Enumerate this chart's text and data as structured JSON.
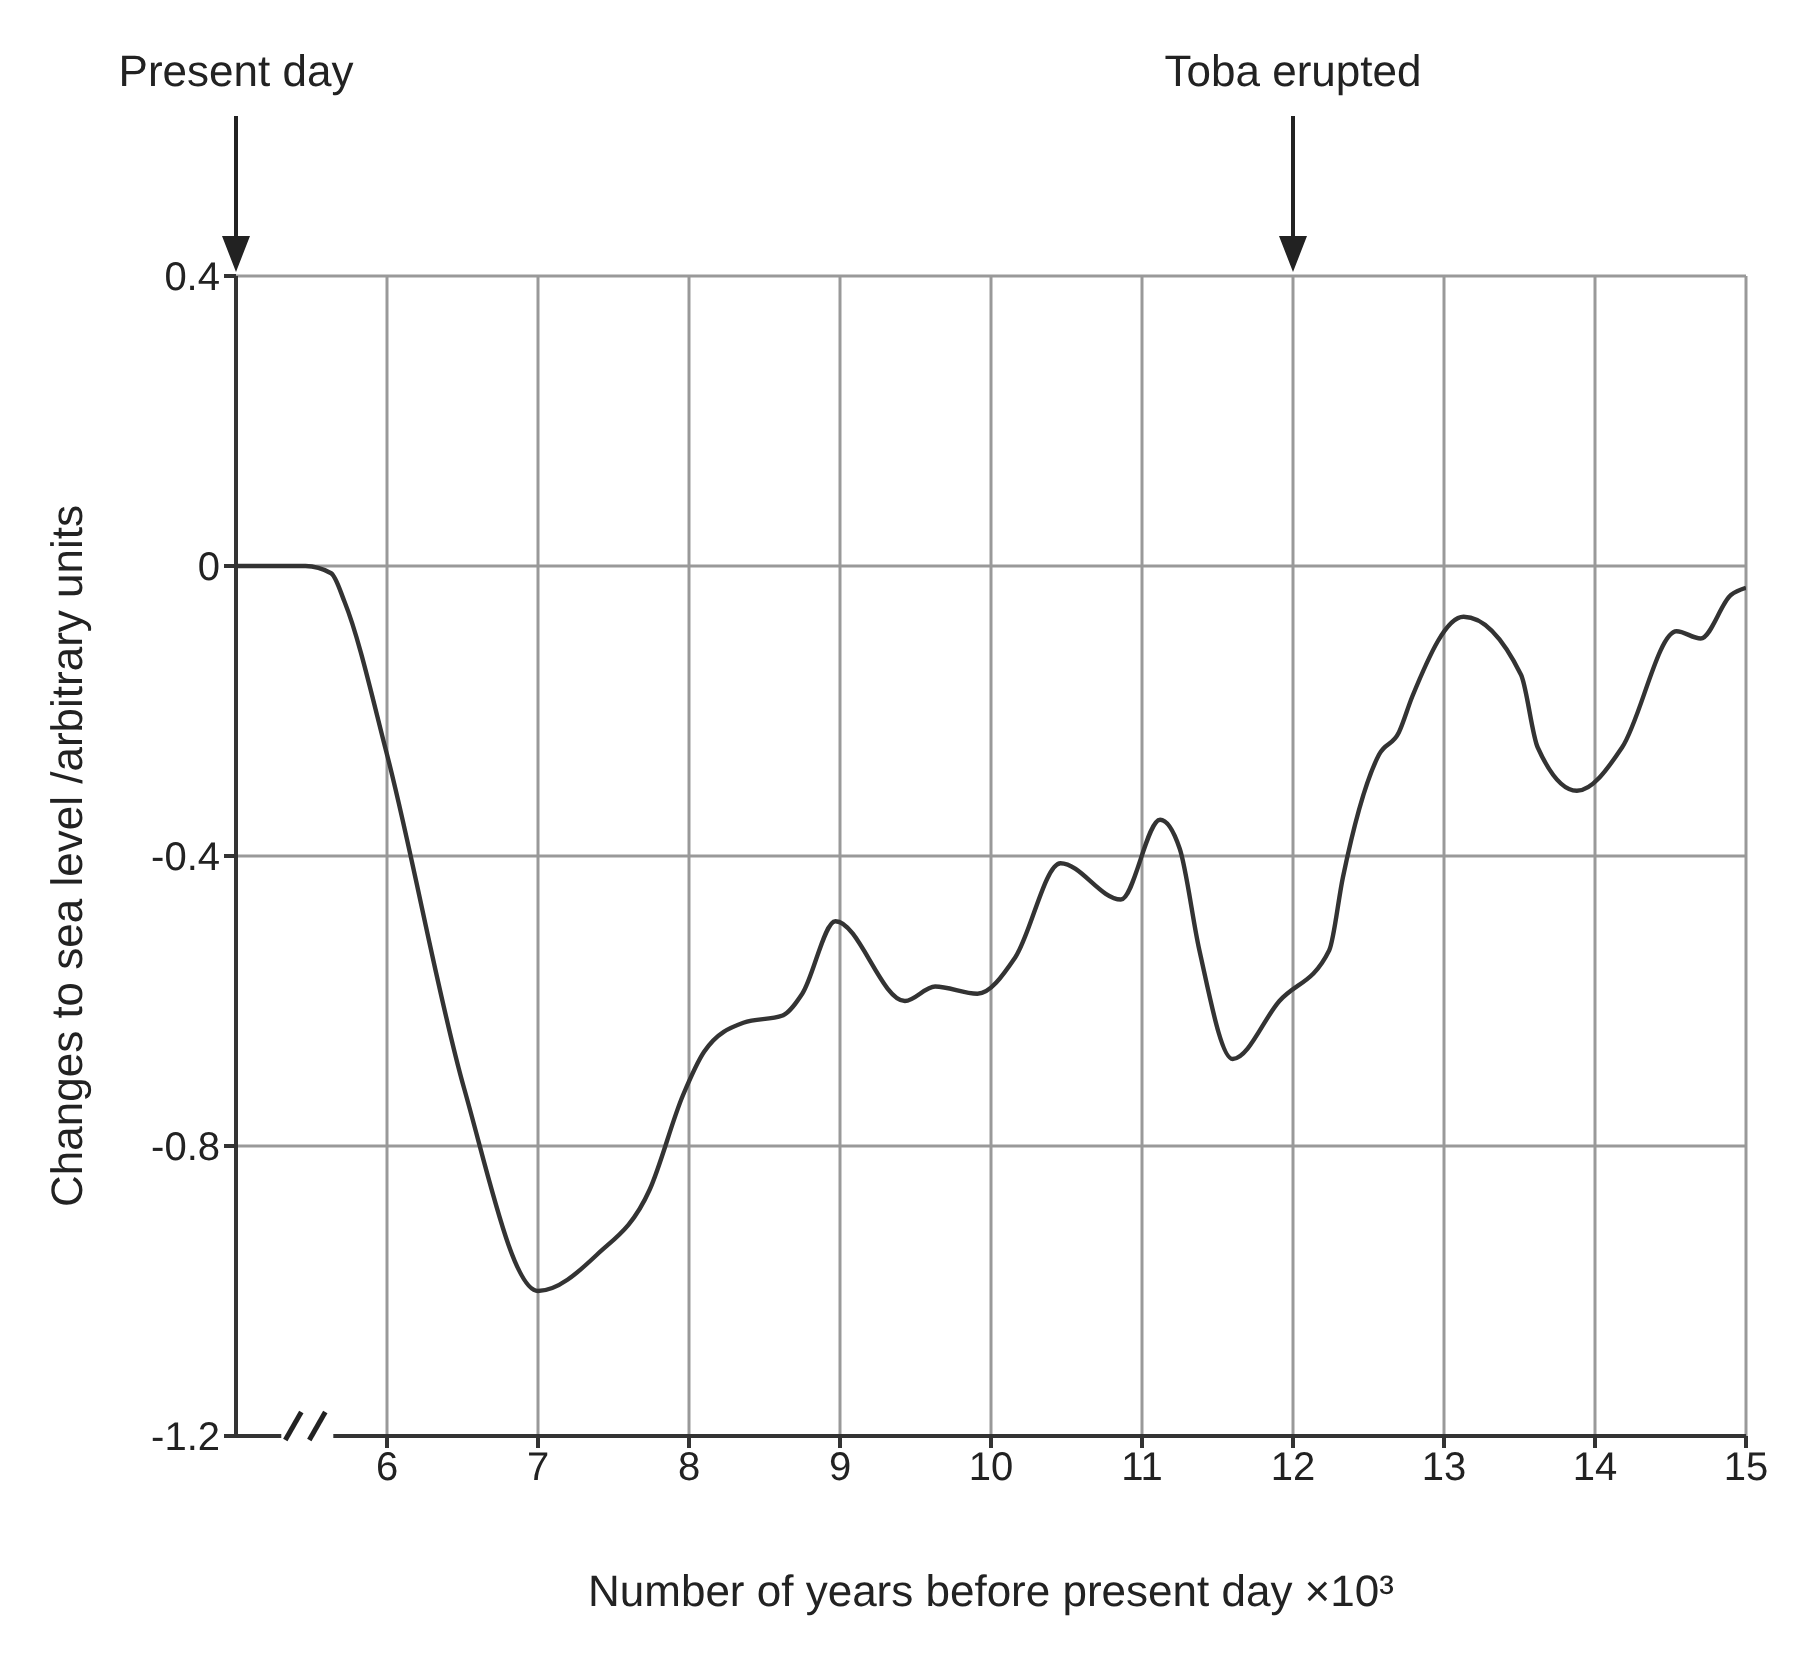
{
  "chart_data": {
    "type": "line",
    "xlabel": "Number of years before present day ×10³",
    "ylabel": "Changes to sea level /arbitrary units",
    "x": [
      5,
      5.46,
      5.63,
      5.72,
      6,
      6.51,
      7,
      7.39,
      7.74,
      7.96,
      8.1,
      8.36,
      8.62,
      8.75,
      8.97,
      9.43,
      9.63,
      9.91,
      10.16,
      10.46,
      10.86,
      11.12,
      11.25,
      11.38,
      11.6,
      11.91,
      12.24,
      12.33,
      12.57,
      12.7,
      12.79,
      13.13,
      13.51,
      13.62,
      13.88,
      14.18,
      14.54,
      14.7,
      14.9,
      15
    ],
    "series": [
      {
        "color": "#333333",
        "values": [
          0,
          0,
          -0.01,
          -0.05,
          -0.26,
          -0.72,
          -1,
          -0.95,
          -0.86,
          -0.73,
          -0.67,
          -0.63,
          -0.62,
          -0.59,
          -0.49,
          -0.6,
          -0.58,
          -0.59,
          -0.54,
          -0.41,
          -0.46,
          -0.35,
          -0.39,
          -0.53,
          -0.68,
          -0.6,
          -0.53,
          -0.43,
          -0.26,
          -0.23,
          -0.18,
          -0.07,
          -0.15,
          -0.25,
          -0.31,
          -0.25,
          -0.09,
          -0.1,
          -0.04,
          -0.03
        ]
      }
    ],
    "xlim": [
      5,
      15
    ],
    "xticks": [
      6,
      7,
      8,
      9,
      10,
      11,
      12,
      13,
      14,
      15
    ],
    "ylim": [
      -1.2,
      0.4
    ],
    "yticks": [
      -1.2,
      -0.8,
      -0.4,
      0,
      0.4
    ],
    "grid": true,
    "marker": "none",
    "line_style": "solid",
    "annotations": [
      "Present day",
      "Toba erupted"
    ]
  }
}
